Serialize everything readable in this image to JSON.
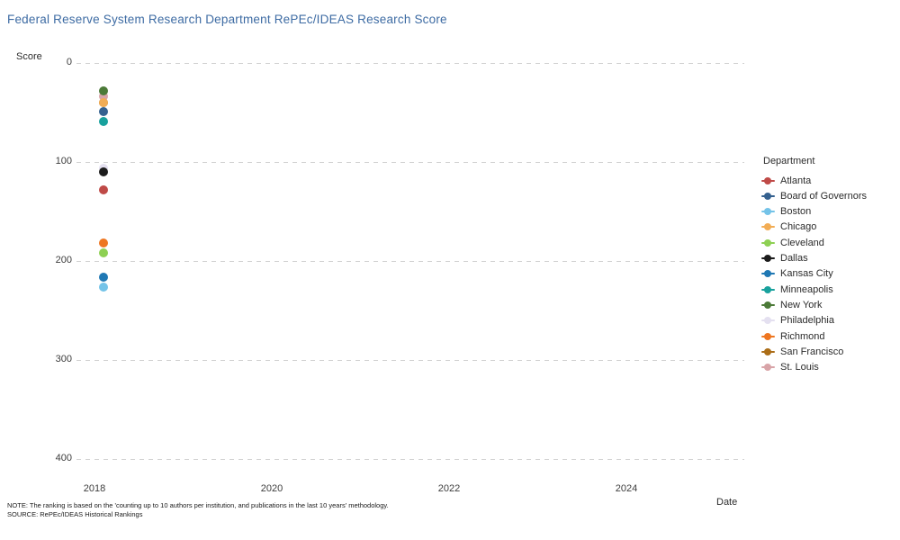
{
  "title": {
    "text": "Federal Reserve System Research Department RePEc/IDEAS Research Score",
    "color": "#3d6ba3"
  },
  "axes": {
    "y_label": "Score",
    "x_label": "Date",
    "y_ticks": [
      0,
      100,
      200,
      300,
      400
    ],
    "x_ticks": [
      2018,
      2020,
      2022,
      2024
    ]
  },
  "legend": {
    "title": "Department",
    "items": [
      {
        "label": "Atlanta",
        "color": "#bf4a47"
      },
      {
        "label": "Board of Governors",
        "color": "#35618f"
      },
      {
        "label": "Boston",
        "color": "#74c3e8"
      },
      {
        "label": "Chicago",
        "color": "#f2ad55"
      },
      {
        "label": "Cleveland",
        "color": "#8ed053"
      },
      {
        "label": "Dallas",
        "color": "#1c1c1c"
      },
      {
        "label": "Kansas City",
        "color": "#1f78b4"
      },
      {
        "label": "Minneapolis",
        "color": "#18a19d"
      },
      {
        "label": "New York",
        "color": "#4c7a38"
      },
      {
        "label": "Philadelphia",
        "color": "#e4e0f0"
      },
      {
        "label": "Richmond",
        "color": "#ee7621"
      },
      {
        "label": "San Francisco",
        "color": "#ab6d17"
      },
      {
        "label": "St. Louis",
        "color": "#d8a4a8"
      }
    ]
  },
  "notes": {
    "note": "NOTE: The ranking is based on the 'counting up to 10 authors per institution, and publications in the last 10 years' methodology.",
    "source": "SOURCE: RePEc/IDEAS Historical Rankings"
  },
  "chart_data": {
    "type": "scatter",
    "title": "Federal Reserve System Research Department RePEc/IDEAS Research Score",
    "xlabel": "Date",
    "ylabel": "Score",
    "x_axis": {
      "ticks": [
        2018,
        2020,
        2022,
        2024
      ],
      "range": [
        2017.8,
        2024.8
      ]
    },
    "y_axis": {
      "ticks": [
        0,
        100,
        200,
        300,
        400
      ],
      "range": [
        0,
        400
      ],
      "inverted": true
    },
    "grid": "horizontal-dashed",
    "legend_position": "right",
    "marker": "circle",
    "series": [
      {
        "name": "Atlanta",
        "color": "#bf4a47",
        "x": [
          2018.1
        ],
        "y": [
          128
        ],
        "z": 8
      },
      {
        "name": "Board of Governors",
        "color": "#35618f",
        "x": [
          2018.1
        ],
        "y": [
          49
        ],
        "z": 4
      },
      {
        "name": "Boston",
        "color": "#74c3e8",
        "x": [
          2018.1
        ],
        "y": [
          226
        ],
        "z": 12
      },
      {
        "name": "Chicago",
        "color": "#f2ad55",
        "x": [
          2018.1
        ],
        "y": [
          40
        ],
        "z": 3
      },
      {
        "name": "Cleveland",
        "color": "#8ed053",
        "x": [
          2018.1
        ],
        "y": [
          192
        ],
        "z": 10
      },
      {
        "name": "Dallas",
        "color": "#1c1c1c",
        "x": [
          2018.1
        ],
        "y": [
          110
        ],
        "z": 7
      },
      {
        "name": "Kansas City",
        "color": "#1f78b4",
        "x": [
          2018.1
        ],
        "y": [
          216
        ],
        "z": 11
      },
      {
        "name": "Minneapolis",
        "color": "#18a19d",
        "x": [
          2018.1
        ],
        "y": [
          59
        ],
        "z": 5
      },
      {
        "name": "New York",
        "color": "#4c7a38",
        "x": [
          2018.1
        ],
        "y": [
          28
        ],
        "z": 2
      },
      {
        "name": "Philadelphia",
        "color": "#e4e0f0",
        "x": [
          2018.1
        ],
        "y": [
          106
        ],
        "z": 6
      },
      {
        "name": "Richmond",
        "color": "#ee7621",
        "x": [
          2018.1
        ],
        "y": [
          182
        ],
        "z": 9
      },
      {
        "name": "San Francisco",
        "color": "#ab6d17",
        "x": [
          2018.1
        ],
        "y": [
          40
        ],
        "z": 0
      },
      {
        "name": "St. Louis",
        "color": "#d8a4a8",
        "x": [
          2018.1
        ],
        "y": [
          34
        ],
        "z": 1
      }
    ]
  }
}
